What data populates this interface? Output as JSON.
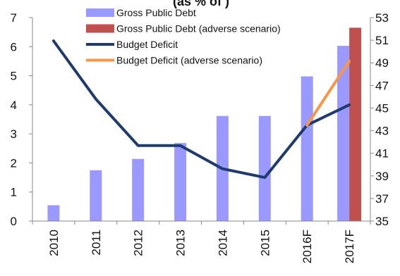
{
  "chart_data": {
    "type": "bar",
    "title": "(as % of )",
    "categories": [
      "2010",
      "2011",
      "2012",
      "2013",
      "2014",
      "2015",
      "2016F",
      "2017F"
    ],
    "left_axis": {
      "ylim": [
        0,
        7
      ],
      "ticks": [
        0,
        1,
        2,
        3,
        4,
        5,
        6,
        7
      ]
    },
    "right_axis": {
      "ylim": [
        35,
        53
      ],
      "ticks": [
        35,
        37,
        39,
        41,
        43,
        45,
        47,
        49,
        51,
        53
      ]
    },
    "series": [
      {
        "name": "Gross Public Debt",
        "type": "bar",
        "axis": "right",
        "color": "#9999ff",
        "values": [
          36.4,
          39.5,
          40.5,
          41.9,
          44.3,
          44.3,
          47.8,
          50.5
        ]
      },
      {
        "name": "Gross Public Debt (adverse scenario)",
        "type": "bar",
        "axis": "right",
        "color": "#c0504d",
        "values": [
          null,
          null,
          null,
          null,
          null,
          null,
          null,
          52.1
        ]
      },
      {
        "name": "Budget Deficit",
        "type": "line",
        "axis": "left",
        "color": "#1f3b6e",
        "values": [
          6.2,
          4.2,
          2.6,
          2.6,
          1.8,
          1.5,
          3.3,
          4.0
        ]
      },
      {
        "name": "Budget Deficit (adverse scenario)",
        "type": "line",
        "axis": "left",
        "color": "#f79646",
        "values": [
          null,
          null,
          null,
          null,
          null,
          null,
          3.3,
          5.5
        ]
      }
    ],
    "legend_placement": "top"
  }
}
